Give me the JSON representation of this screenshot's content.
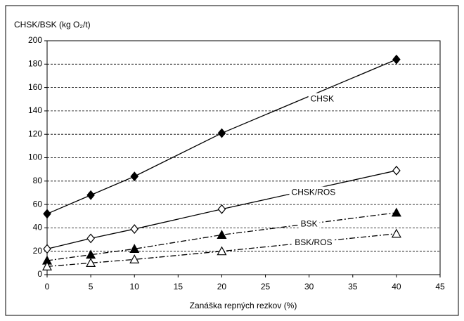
{
  "chart_data": {
    "type": "line",
    "title": "CHSK/BSK (kg O₂/t)",
    "x_label": "Zanáška repných rezkov (%)",
    "x": [
      0,
      5,
      10,
      20,
      40
    ],
    "series": [
      {
        "name": "CHSK",
        "color": "#000000",
        "marker": "diamond",
        "filled": true,
        "dash": "solid",
        "values": [
          52,
          68,
          84,
          121,
          184
        ]
      },
      {
        "name": "CHSK/ROS",
        "color": "#000000",
        "marker": "diamond",
        "filled": false,
        "dash": "solid",
        "values": [
          22,
          31,
          39,
          56,
          89
        ]
      },
      {
        "name": "BSK",
        "color": "#000000",
        "marker": "triangle",
        "filled": true,
        "dash": "dashdot",
        "values": [
          12,
          17,
          22,
          34,
          53
        ]
      },
      {
        "name": "BSK/ROS",
        "color": "#000000",
        "marker": "triangle",
        "filled": false,
        "dash": "dashdot",
        "values": [
          7,
          10,
          13,
          20,
          35
        ]
      }
    ],
    "xlim": [
      0,
      45
    ],
    "xticks": [
      0,
      5,
      10,
      15,
      20,
      25,
      30,
      35,
      40,
      45
    ],
    "ylim": [
      0,
      200
    ],
    "yticks": [
      0,
      20,
      40,
      60,
      80,
      100,
      120,
      140,
      160,
      180,
      200
    ],
    "grid": true
  }
}
